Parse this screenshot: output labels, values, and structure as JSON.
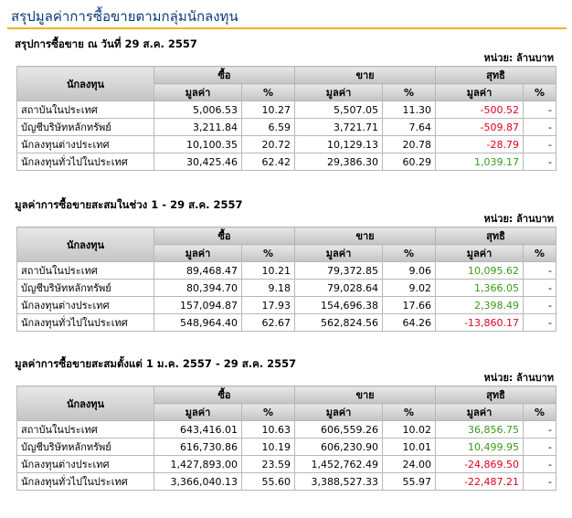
{
  "page_title": "สรุปมูลค่าการซื้อขายตามกลุ่มนักลงทุน",
  "headers": {
    "investor": "นักลงทุน",
    "buy": "ซื้อ",
    "sell": "ขาย",
    "net": "สุทธิ",
    "value": "มูลค่า",
    "percent": "%"
  },
  "sections": [
    {
      "heading": "สรุปการซื้อขาย ณ วันที่ 29 ส.ค. 2557",
      "unit": "หน่วย: ล้านบาท",
      "rows": [
        {
          "name": "สถาบันในประเทศ",
          "buy_value": "5,006.53",
          "buy_pct": "10.27",
          "sell_value": "5,507.05",
          "sell_pct": "11.30",
          "net_value": "-500.52",
          "net_pct": "-",
          "net_color": "#e0001b"
        },
        {
          "name": "บัญชีบริษัทหลักทรัพย์",
          "buy_value": "3,211.84",
          "buy_pct": "6.59",
          "sell_value": "3,721.71",
          "sell_pct": "7.64",
          "net_value": "-509.87",
          "net_pct": "-",
          "net_color": "#e0001b"
        },
        {
          "name": "นักลงทุนต่างประเทศ",
          "buy_value": "10,100.35",
          "buy_pct": "20.72",
          "sell_value": "10,129.13",
          "sell_pct": "20.78",
          "net_value": "-28.79",
          "net_pct": "-",
          "net_color": "#e0001b"
        },
        {
          "name": "นักลงทุนทั่วไปในประเทศ",
          "buy_value": "30,425.46",
          "buy_pct": "62.42",
          "sell_value": "29,386.30",
          "sell_pct": "60.29",
          "net_value": "1,039.17",
          "net_pct": "-",
          "net_color": "#3a9a1a"
        }
      ]
    },
    {
      "heading": "มูลค่าการซื้อขายสะสมในช่วง 1 - 29 ส.ค. 2557",
      "unit": "หน่วย: ล้านบาท",
      "rows": [
        {
          "name": "สถาบันในประเทศ",
          "buy_value": "89,468.47",
          "buy_pct": "10.21",
          "sell_value": "79,372.85",
          "sell_pct": "9.06",
          "net_value": "10,095.62",
          "net_pct": "-",
          "net_color": "#3a9a1a"
        },
        {
          "name": "บัญชีบริษัทหลักทรัพย์",
          "buy_value": "80,394.70",
          "buy_pct": "9.18",
          "sell_value": "79,028.64",
          "sell_pct": "9.02",
          "net_value": "1,366.05",
          "net_pct": "-",
          "net_color": "#3a9a1a"
        },
        {
          "name": "นักลงทุนต่างประเทศ",
          "buy_value": "157,094.87",
          "buy_pct": "17.93",
          "sell_value": "154,696.38",
          "sell_pct": "17.66",
          "net_value": "2,398.49",
          "net_pct": "-",
          "net_color": "#3a9a1a"
        },
        {
          "name": "นักลงทุนทั่วไปในประเทศ",
          "buy_value": "548,964.40",
          "buy_pct": "62.67",
          "sell_value": "562,824.56",
          "sell_pct": "64.26",
          "net_value": "-13,860.17",
          "net_pct": "-",
          "net_color": "#e0001b"
        }
      ]
    },
    {
      "heading": "มูลค่าการซื้อขายสะสมตั้งแต่ 1 ม.ค. 2557 - 29 ส.ค. 2557",
      "unit": "หน่วย: ล้านบาท",
      "rows": [
        {
          "name": "สถาบันในประเทศ",
          "buy_value": "643,416.01",
          "buy_pct": "10.63",
          "sell_value": "606,559.26",
          "sell_pct": "10.02",
          "net_value": "36,856.75",
          "net_pct": "-",
          "net_color": "#3a9a1a"
        },
        {
          "name": "บัญชีบริษัทหลักทรัพย์",
          "buy_value": "616,730.86",
          "buy_pct": "10.19",
          "sell_value": "606,230.90",
          "sell_pct": "10.01",
          "net_value": "10,499.95",
          "net_pct": "-",
          "net_color": "#3a9a1a"
        },
        {
          "name": "นักลงทุนต่างประเทศ",
          "buy_value": "1,427,893.00",
          "buy_pct": "23.59",
          "sell_value": "1,452,762.49",
          "sell_pct": "24.00",
          "net_value": "-24,869.50",
          "net_pct": "-",
          "net_color": "#e0001b"
        },
        {
          "name": "นักลงทุนทั่วไปในประเทศ",
          "buy_value": "3,366,040.13",
          "buy_pct": "55.60",
          "sell_value": "3,388,527.33",
          "sell_pct": "55.97",
          "net_value": "-22,487.21",
          "net_pct": "-",
          "net_color": "#e0001b"
        }
      ]
    }
  ]
}
